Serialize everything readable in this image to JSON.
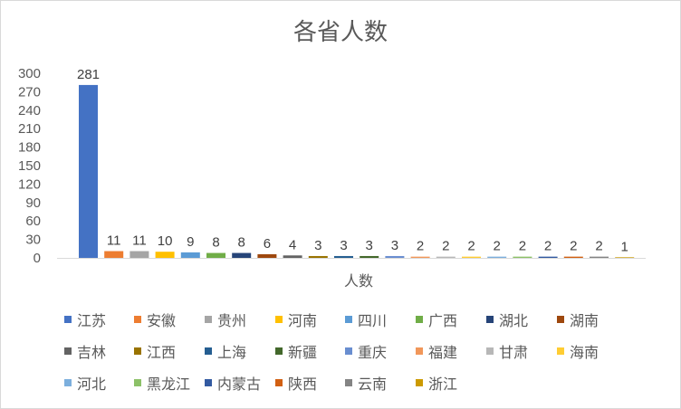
{
  "chart_data": {
    "type": "bar",
    "title": "各省人数",
    "xlabel": "人数",
    "ylabel": "",
    "ylim": [
      0,
      300
    ],
    "yticks": [
      0,
      30,
      60,
      90,
      120,
      150,
      180,
      210,
      240,
      270,
      300
    ],
    "grid": false,
    "legend_position": "bottom",
    "series": [
      {
        "name": "江苏",
        "value": 281,
        "color": "#4472C4"
      },
      {
        "name": "安徽",
        "value": 11,
        "color": "#ED7D31"
      },
      {
        "name": "贵州",
        "value": 11,
        "color": "#A5A5A5"
      },
      {
        "name": "河南",
        "value": 10,
        "color": "#FFC000"
      },
      {
        "name": "四川",
        "value": 9,
        "color": "#5B9BD5"
      },
      {
        "name": "广西",
        "value": 8,
        "color": "#70AD47"
      },
      {
        "name": "湖北",
        "value": 8,
        "color": "#264478"
      },
      {
        "name": "湖南",
        "value": 6,
        "color": "#9E480E"
      },
      {
        "name": "吉林",
        "value": 4,
        "color": "#636363"
      },
      {
        "name": "江西",
        "value": 3,
        "color": "#997300"
      },
      {
        "name": "上海",
        "value": 3,
        "color": "#255E91"
      },
      {
        "name": "新疆",
        "value": 3,
        "color": "#43682B"
      },
      {
        "name": "重庆",
        "value": 3,
        "color": "#698ED0"
      },
      {
        "name": "福建",
        "value": 2,
        "color": "#F1975A"
      },
      {
        "name": "甘肃",
        "value": 2,
        "color": "#B7B7B7"
      },
      {
        "name": "海南",
        "value": 2,
        "color": "#FFCD33"
      },
      {
        "name": "河北",
        "value": 2,
        "color": "#7CAFDD"
      },
      {
        "name": "黑龙江",
        "value": 2,
        "color": "#8CC168"
      },
      {
        "name": "内蒙古",
        "value": 2,
        "color": "#335AA1"
      },
      {
        "name": "陕西",
        "value": 2,
        "color": "#D26012"
      },
      {
        "name": "云南",
        "value": 2,
        "color": "#848484"
      },
      {
        "name": "浙江",
        "value": 1,
        "color": "#CC9A00"
      }
    ]
  }
}
